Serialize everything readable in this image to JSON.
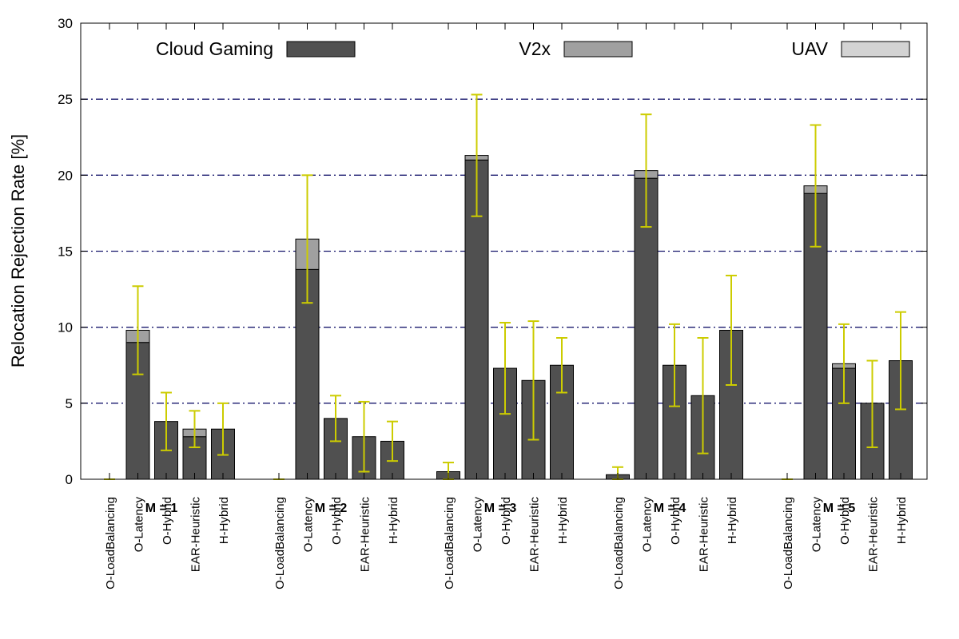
{
  "chart_data": {
    "type": "bar",
    "stacked": true,
    "ylabel": "Relocation Rejection Rate [%]",
    "ylim": [
      0,
      30
    ],
    "yticks": [
      0,
      5,
      10,
      15,
      20,
      25,
      30
    ],
    "grid": "horizontal dash-dot at 5, 10, 15, 20",
    "legend_position": "top",
    "categories": [
      "O-LoadBalancing",
      "O-Latency",
      "O-Hybrid",
      "EAR-Heuristic",
      "H-Hybrid"
    ],
    "groups": [
      "M = 1",
      "M = 2",
      "M = 3",
      "M = 4",
      "M = 5"
    ],
    "series": [
      {
        "name": "Cloud Gaming",
        "color": "#505050",
        "values": [
          [
            0,
            9.0,
            3.8,
            2.8,
            3.3
          ],
          [
            0,
            13.8,
            4.0,
            2.8,
            2.5
          ],
          [
            0.5,
            21.0,
            7.3,
            6.5,
            7.5
          ],
          [
            0.3,
            19.8,
            7.5,
            5.5,
            9.8
          ],
          [
            0,
            18.8,
            7.3,
            5.0,
            7.8
          ]
        ]
      },
      {
        "name": "V2x",
        "color": "#a0a0a0",
        "values": [
          [
            0,
            0.8,
            0,
            0.5,
            0
          ],
          [
            0,
            2.0,
            0,
            0,
            0
          ],
          [
            0,
            0.3,
            0,
            0,
            0
          ],
          [
            0,
            0.5,
            0,
            0,
            0
          ],
          [
            0,
            0.5,
            0.3,
            0,
            0
          ]
        ]
      },
      {
        "name": "UAV",
        "color": "#d3d3d3",
        "values": [
          [
            0,
            0,
            0,
            0,
            0
          ],
          [
            0,
            0,
            0,
            0,
            0
          ],
          [
            0,
            0,
            0,
            0,
            0
          ],
          [
            0,
            0,
            0,
            0,
            0
          ],
          [
            0,
            0,
            0,
            0,
            0
          ]
        ]
      }
    ],
    "error_bars": {
      "color": "#cccc00",
      "ranges": [
        [
          [
            0,
            0
          ],
          [
            6.9,
            12.7
          ],
          [
            1.9,
            5.7
          ],
          [
            2.1,
            4.5
          ],
          [
            1.6,
            5.0
          ]
        ],
        [
          [
            0,
            0
          ],
          [
            11.6,
            20.0
          ],
          [
            2.5,
            5.5
          ],
          [
            0.5,
            5.1
          ],
          [
            1.2,
            3.8
          ]
        ],
        [
          [
            0,
            1.1
          ],
          [
            17.3,
            25.3
          ],
          [
            4.3,
            10.3
          ],
          [
            2.6,
            10.4
          ],
          [
            5.7,
            9.3
          ]
        ],
        [
          [
            0,
            0.8
          ],
          [
            16.6,
            24.0
          ],
          [
            4.8,
            10.2
          ],
          [
            1.7,
            9.3
          ],
          [
            6.2,
            13.4
          ]
        ],
        [
          [
            0,
            0
          ],
          [
            15.3,
            23.3
          ],
          [
            5.0,
            10.2
          ],
          [
            2.1,
            7.8
          ],
          [
            4.6,
            11.0
          ]
        ]
      ]
    }
  }
}
